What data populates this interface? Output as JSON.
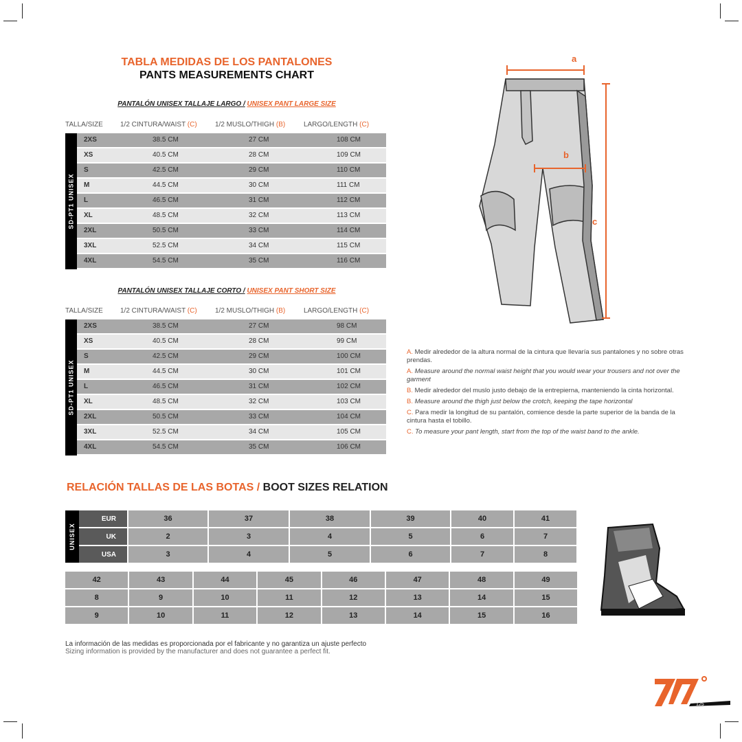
{
  "title_es": "TABLA MEDIDAS DE LOS PANTALONES",
  "title_en": "PANTS MEASUREMENTS CHART",
  "headers": {
    "size": "TALLA/SIZE",
    "waist": "1/2 CINTURA/WAIST",
    "waist_key": "(C)",
    "thigh": "1/2 MUSLO/THIGH",
    "thigh_key": "(B)",
    "length": "LARGO/LENGTH",
    "length_key": "(C)"
  },
  "side_label": "SD-PT1 UNISEX",
  "large": {
    "title_es": "PANTALÓN UNISEX TALLAJE LARGO /",
    "title_en": "UNISEX PANT LARGE SIZE",
    "rows": [
      [
        "2XS",
        "38.5 CM",
        "27 CM",
        "108 CM"
      ],
      [
        "XS",
        "40.5 CM",
        "28 CM",
        "109 CM"
      ],
      [
        "S",
        "42.5 CM",
        "29 CM",
        "110 CM"
      ],
      [
        "M",
        "44.5 CM",
        "30 CM",
        "111 CM"
      ],
      [
        "L",
        "46.5 CM",
        "31 CM",
        "112 CM"
      ],
      [
        "XL",
        "48.5 CM",
        "32 CM",
        "113 CM"
      ],
      [
        "2XL",
        "50.5 CM",
        "33 CM",
        "114 CM"
      ],
      [
        "3XL",
        "52.5 CM",
        "34 CM",
        "115 CM"
      ],
      [
        "4XL",
        "54.5 CM",
        "35 CM",
        "116 CM"
      ]
    ]
  },
  "short": {
    "title_es": "PANTALÓN UNISEX TALLAJE CORTO /",
    "title_en": "UNISEX PANT SHORT SIZE",
    "rows": [
      [
        "2XS",
        "38.5 CM",
        "27 CM",
        "98 CM"
      ],
      [
        "XS",
        "40.5 CM",
        "28 CM",
        "99 CM"
      ],
      [
        "S",
        "42.5 CM",
        "29 CM",
        "100 CM"
      ],
      [
        "M",
        "44.5 CM",
        "30 CM",
        "101 CM"
      ],
      [
        "L",
        "46.5 CM",
        "31 CM",
        "102 CM"
      ],
      [
        "XL",
        "48.5 CM",
        "32 CM",
        "103 CM"
      ],
      [
        "2XL",
        "50.5 CM",
        "33 CM",
        "104 CM"
      ],
      [
        "3XL",
        "52.5 CM",
        "34 CM",
        "105 CM"
      ],
      [
        "4XL",
        "54.5 CM",
        "35 CM",
        "106 CM"
      ]
    ]
  },
  "diagram_labels": {
    "a": "a",
    "b": "b",
    "c": "c"
  },
  "notes": [
    {
      "key": "A.",
      "text": "Medir alrededor de la altura normal de la cintura que llevaría sus pantalones y no sobre otras prendas.",
      "italic": false
    },
    {
      "key": "A.",
      "text": "Measure around the normal waist height that you would wear your trousers and not over the garment",
      "italic": true
    },
    {
      "key": "B.",
      "text": "Medir alrededor del muslo justo debajo de la entrepierna, manteniendo la cinta horizontal.",
      "italic": false
    },
    {
      "key": "B.",
      "text": "Measure around the thigh just below the crotch, keeping the tape horizontal",
      "italic": true
    },
    {
      "key": "C.",
      "text": "Para medir la longitud de su pantalón, comience desde la parte superior de la banda de la cintura hasta el tobillo.",
      "italic": false
    },
    {
      "key": "C.",
      "text": "To measure your pant length, start from the top of the waist band to the ankle.",
      "italic": true
    }
  ],
  "boots": {
    "title_es": "RELACIÓN TALLAS DE LAS BOTAS /",
    "title_en": "BOOT SIZES RELATION",
    "side_label": "UNISEX",
    "labels": [
      "EUR",
      "UK",
      "USA"
    ],
    "part1": [
      [
        "36",
        "37",
        "38",
        "39",
        "40",
        "41"
      ],
      [
        "2",
        "3",
        "4",
        "5",
        "6",
        "7"
      ],
      [
        "3",
        "4",
        "5",
        "6",
        "7",
        "8"
      ]
    ],
    "part2": [
      [
        "42",
        "43",
        "44",
        "45",
        "46",
        "47",
        "48",
        "49"
      ],
      [
        "8",
        "9",
        "10",
        "11",
        "12",
        "13",
        "14",
        "15"
      ],
      [
        "9",
        "10",
        "11",
        "12",
        "13",
        "14",
        "15",
        "16"
      ]
    ]
  },
  "footer": {
    "es": "La información de las medidas es proporcionada por el fabricante y no garantiza un ajuste perfecto",
    "en": "Sizing information is provided by the manufacturer and does not guarantee a perfect fit."
  },
  "logo": {
    "text": "70°",
    "page": "125"
  },
  "colors": {
    "accent": "#e8642c",
    "row_dark": "#a8a8a8",
    "row_light": "#e7e7e7"
  }
}
